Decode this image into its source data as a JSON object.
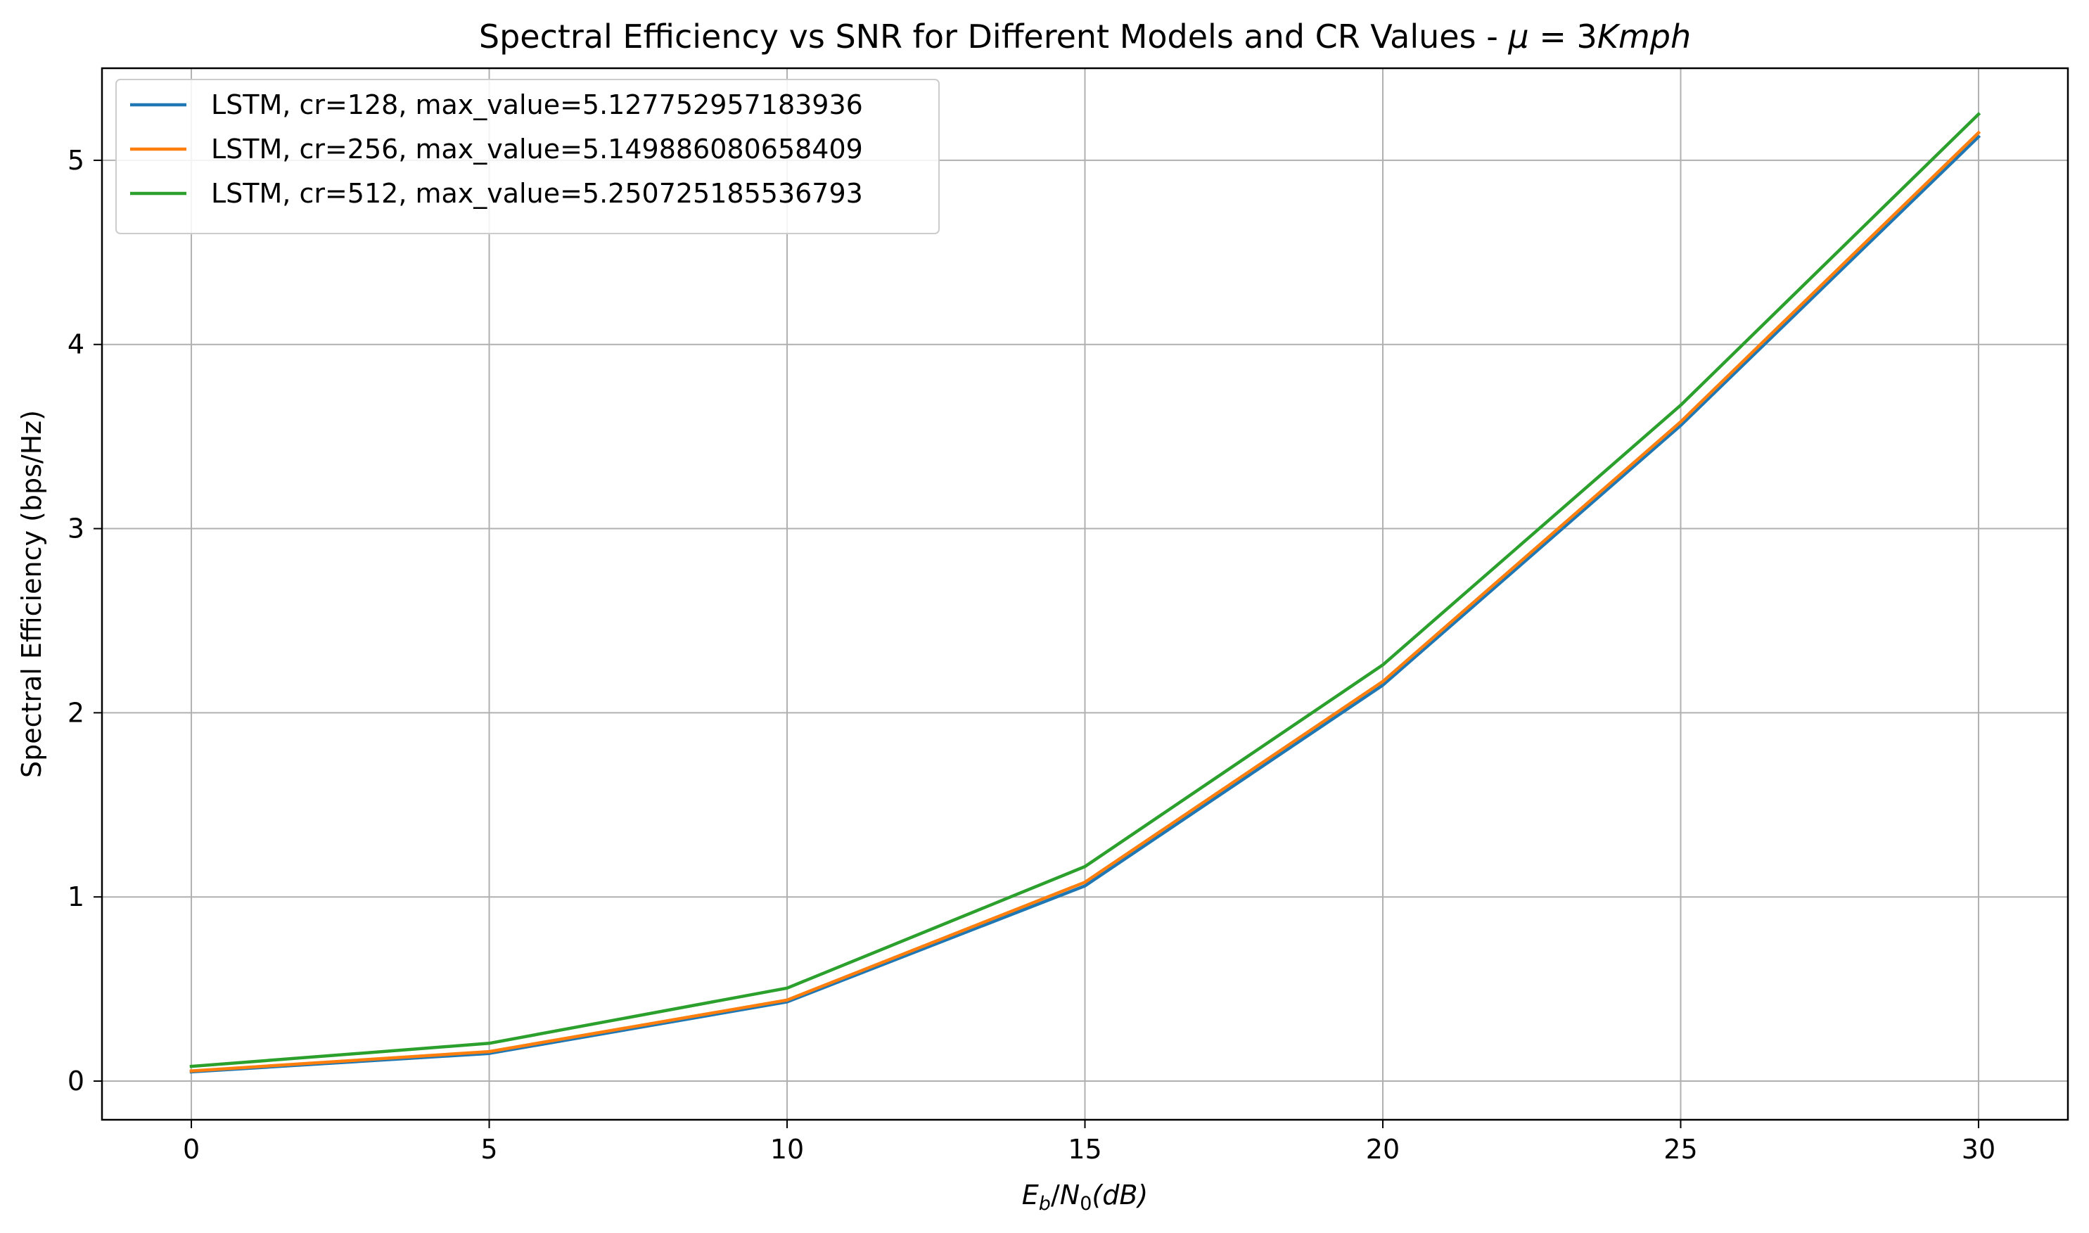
{
  "chart_data": {
    "type": "line",
    "title": "Spectral Efficiency vs SNR for Different Models and CR Values - ",
    "title_math": {
      "mu": "μ",
      "eq": " = 3",
      "unit": "Kmph"
    },
    "xlabel": {
      "E": "E",
      "b": "b",
      "slash": "/",
      "N": "N",
      "zero": "0",
      "unit": "(dB)"
    },
    "ylabel": "Spectral Efficiency (bps/Hz)",
    "x": [
      0,
      5,
      10,
      15,
      20,
      25,
      30
    ],
    "xlim": [
      -1.5,
      31.5
    ],
    "ylim": [
      -0.21,
      5.5
    ],
    "xticks": [
      0,
      5,
      10,
      15,
      20,
      25,
      30
    ],
    "yticks": [
      0,
      1,
      2,
      3,
      4,
      5
    ],
    "grid": true,
    "legend_position": "top-left",
    "series": [
      {
        "name": "LSTM, cr=128, max_value=5.127752957183936",
        "color": "#1f77b4",
        "values": [
          0.05,
          0.15,
          0.43,
          1.06,
          2.15,
          3.56,
          5.127752957183936
        ]
      },
      {
        "name": "LSTM, cr=256, max_value=5.149886080658409",
        "color": "#ff7f0e",
        "values": [
          0.055,
          0.16,
          0.44,
          1.08,
          2.17,
          3.58,
          5.149886080658409
        ]
      },
      {
        "name": "LSTM, cr=512, max_value=5.250725185536793",
        "color": "#2ca02c",
        "values": [
          0.08,
          0.205,
          0.505,
          1.165,
          2.26,
          3.67,
          5.250725185536793
        ]
      }
    ]
  }
}
